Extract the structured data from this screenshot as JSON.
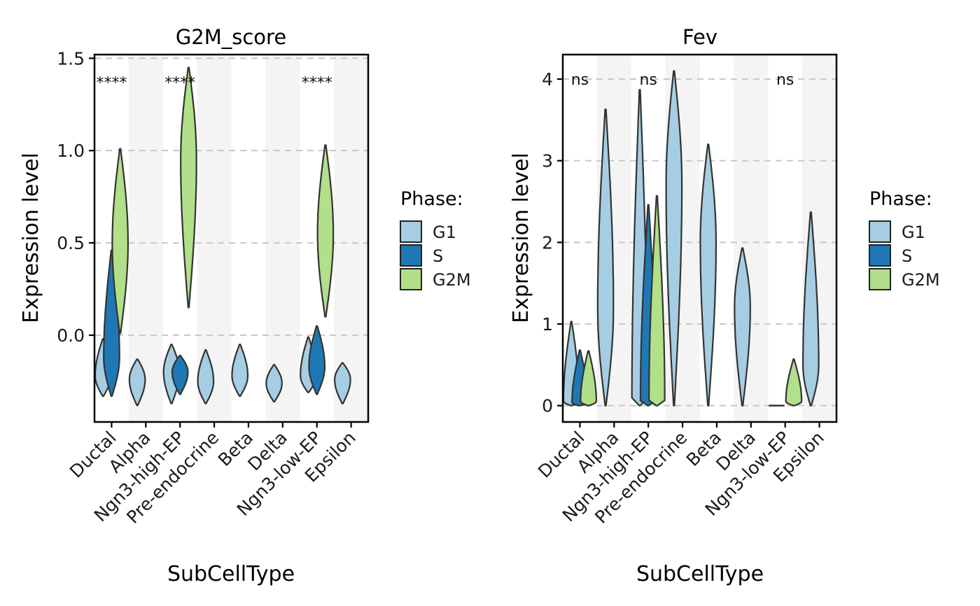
{
  "chart_data": [
    {
      "type": "violin",
      "title": "G2M_score",
      "xlabel": "SubCellType",
      "ylabel": "Expression level",
      "ylim": [
        -0.47,
        1.52
      ],
      "yticks": [
        0.0,
        0.5,
        1.0,
        1.5
      ],
      "ytick_labels": [
        "0.0",
        "0.5",
        "1.0",
        "1.5"
      ],
      "grid": "horizontal dashed",
      "legend_title": "Phase:",
      "legend_position": "right",
      "categories": [
        "Ductal",
        "Alpha",
        "Ngn3-high-EP",
        "Pre-endocrine",
        "Beta",
        "Delta",
        "Ngn3-low-EP",
        "Epsilon"
      ],
      "series": [
        {
          "name": "G1",
          "color": "#A6CEE3"
        },
        {
          "name": "S",
          "color": "#1F78B4"
        },
        {
          "name": "G2M",
          "color": "#B2DF8A"
        }
      ],
      "violins": [
        {
          "category": "Ductal",
          "phase": "G1",
          "min": -0.33,
          "max": -0.02,
          "mode": -0.22
        },
        {
          "category": "Ductal",
          "phase": "S",
          "min": -0.33,
          "max": 0.46,
          "mode": -0.12
        },
        {
          "category": "Ductal",
          "phase": "G2M",
          "min": 0.01,
          "max": 1.01,
          "mode": 0.5
        },
        {
          "category": "Alpha",
          "phase": "G1",
          "min": -0.38,
          "max": -0.13,
          "mode": -0.24
        },
        {
          "category": "Ngn3-high-EP",
          "phase": "G1",
          "min": -0.37,
          "max": -0.05,
          "mode": -0.2
        },
        {
          "category": "Ngn3-high-EP",
          "phase": "S",
          "min": -0.32,
          "max": -0.11,
          "mode": -0.2
        },
        {
          "category": "Ngn3-high-EP",
          "phase": "G2M",
          "min": 0.15,
          "max": 1.45,
          "mode": 0.95
        },
        {
          "category": "Pre-endocrine",
          "phase": "G1",
          "min": -0.37,
          "max": -0.08,
          "mode": -0.25
        },
        {
          "category": "Beta",
          "phase": "G1",
          "min": -0.33,
          "max": -0.05,
          "mode": -0.22
        },
        {
          "category": "Delta",
          "phase": "G1",
          "min": -0.36,
          "max": -0.16,
          "mode": -0.26
        },
        {
          "category": "Ngn3-low-EP",
          "phase": "G1",
          "min": -0.31,
          "max": -0.01,
          "mode": -0.22
        },
        {
          "category": "Ngn3-low-EP",
          "phase": "S",
          "min": -0.32,
          "max": 0.05,
          "mode": -0.17
        },
        {
          "category": "Ngn3-low-EP",
          "phase": "G2M",
          "min": 0.1,
          "max": 1.03,
          "mode": 0.55
        },
        {
          "category": "Epsilon",
          "phase": "G1",
          "min": -0.37,
          "max": -0.15,
          "mode": -0.24
        }
      ],
      "significance": [
        {
          "category": "Ductal",
          "label": "****"
        },
        {
          "category": "Ngn3-high-EP",
          "label": "****"
        },
        {
          "category": "Ngn3-low-EP",
          "label": "****"
        }
      ],
      "significance_y": 1.37
    },
    {
      "type": "violin",
      "title": "Fev",
      "xlabel": "SubCellType",
      "ylabel": "Expression level",
      "ylim": [
        -0.2,
        4.3
      ],
      "yticks": [
        0,
        1,
        2,
        3,
        4
      ],
      "ytick_labels": [
        "0",
        "1",
        "2",
        "3",
        "4"
      ],
      "grid": "horizontal dashed",
      "legend_title": "Phase:",
      "legend_position": "right",
      "categories": [
        "Ductal",
        "Alpha",
        "Ngn3-high-EP",
        "Pre-endocrine",
        "Beta",
        "Delta",
        "Ngn3-low-EP",
        "Epsilon"
      ],
      "series": [
        {
          "name": "G1",
          "color": "#A6CEE3"
        },
        {
          "name": "S",
          "color": "#1F78B4"
        },
        {
          "name": "G2M",
          "color": "#B2DF8A"
        }
      ],
      "violins": [
        {
          "category": "Ductal",
          "phase": "G1",
          "min": 0,
          "max": 1.03,
          "mode": 0.05
        },
        {
          "category": "Ductal",
          "phase": "S",
          "min": 0,
          "max": 0.68,
          "mode": 0.03
        },
        {
          "category": "Ductal",
          "phase": "G2M",
          "min": 0,
          "max": 0.67,
          "mode": 0.05
        },
        {
          "category": "Alpha",
          "phase": "G1",
          "min": 0,
          "max": 3.63,
          "mode": 1.2
        },
        {
          "category": "Ngn3-high-EP",
          "phase": "G1",
          "min": 0,
          "max": 3.87,
          "mode": 0.05
        },
        {
          "category": "Ngn3-high-EP",
          "phase": "S",
          "min": 0,
          "max": 2.46,
          "mode": 0.05
        },
        {
          "category": "Ngn3-high-EP",
          "phase": "G2M",
          "min": 0,
          "max": 2.57,
          "mode": 0.05
        },
        {
          "category": "Pre-endocrine",
          "phase": "G1",
          "min": 0,
          "max": 4.1,
          "mode": 2.7
        },
        {
          "category": "Beta",
          "phase": "G1",
          "min": 0,
          "max": 3.2,
          "mode": 2.0
        },
        {
          "category": "Delta",
          "phase": "G1",
          "min": 0,
          "max": 1.93,
          "mode": 1.2
        },
        {
          "category": "Ngn3-low-EP",
          "phase": "G1",
          "min": 0,
          "max": 0,
          "mode": 0
        },
        {
          "category": "Ngn3-low-EP",
          "phase": "G2M",
          "min": 0,
          "max": 0.57,
          "mode": 0.05
        },
        {
          "category": "Epsilon",
          "phase": "G1",
          "min": 0,
          "max": 2.37,
          "mode": 0.5
        }
      ],
      "significance": [
        {
          "category": "Ductal",
          "label": "ns"
        },
        {
          "category": "Ngn3-high-EP",
          "label": "ns"
        },
        {
          "category": "Ngn3-low-EP",
          "label": "ns"
        }
      ],
      "significance_y": 4.0
    }
  ]
}
